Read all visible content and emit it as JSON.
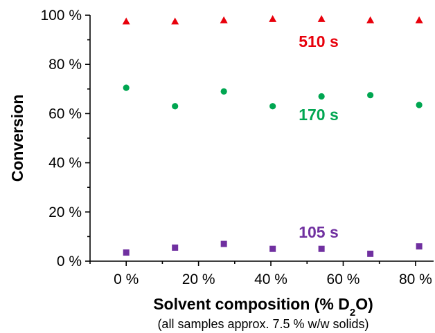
{
  "chart_data": {
    "type": "scatter",
    "xlabel_prefix": "Solvent composition (% D",
    "xlabel_sub": "2",
    "xlabel_suffix": "O)",
    "ylabel": "Conversion",
    "note": "(all samples approx. 7.5 % w/w solids)",
    "xlim": [
      -10,
      85
    ],
    "ylim": [
      0,
      100
    ],
    "x_ticks": [
      0,
      20,
      40,
      60,
      80
    ],
    "x_tick_labels": [
      "0 %",
      "20 %",
      "40 %",
      "60 %",
      "80 %"
    ],
    "y_ticks": [
      0,
      20,
      40,
      60,
      80,
      100
    ],
    "y_tick_labels": [
      "0 %",
      "20 %",
      "40 %",
      "60 %",
      "80 %",
      "100 %"
    ],
    "x": [
      0,
      13.5,
      27,
      40.5,
      54,
      67.5,
      81
    ],
    "series": [
      {
        "name": "510 s",
        "marker": "triangle",
        "color": "#e8000b",
        "values": [
          97.5,
          97.5,
          98,
          98.5,
          98.5,
          98,
          98
        ]
      },
      {
        "name": "170 s",
        "marker": "circle",
        "color": "#00a651",
        "values": [
          70.5,
          63,
          69,
          63,
          67,
          67.5,
          63.5
        ]
      },
      {
        "name": "105 s",
        "marker": "square",
        "color": "#7030a0",
        "values": [
          3.5,
          5.5,
          7,
          5,
          5,
          3,
          6
        ]
      }
    ]
  }
}
